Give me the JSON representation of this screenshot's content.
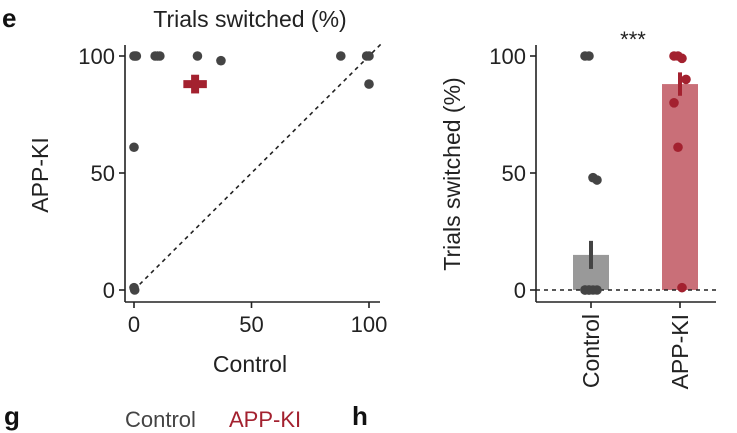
{
  "colors": {
    "control": "#444444",
    "appki": "#a3212f",
    "control_bar": "#999999",
    "appki_bar": "#c96f78",
    "axis": "#222222"
  },
  "panel_labels": {
    "e": "e",
    "g": "g",
    "h": "h"
  },
  "legend": {
    "control": "Control",
    "appki": "APP-KI"
  },
  "chart_data": [
    {
      "type": "scatter",
      "title": "Trials switched (%)",
      "xlabel": "Control",
      "ylabel": "APP-KI",
      "xlim": [
        0,
        100
      ],
      "ylim": [
        0,
        100
      ],
      "xticks": [
        0,
        50,
        100
      ],
      "yticks": [
        0,
        50,
        100
      ],
      "xtick_labels": [
        "0",
        "50",
        "100"
      ],
      "ytick_labels": [
        "0",
        "50",
        "100"
      ],
      "points": [
        {
          "x": 0,
          "y": 100
        },
        {
          "x": 0.5,
          "y": 100
        },
        {
          "x": 1,
          "y": 100
        },
        {
          "x": 9,
          "y": 100
        },
        {
          "x": 10,
          "y": 100
        },
        {
          "x": 11,
          "y": 100
        },
        {
          "x": 27,
          "y": 100
        },
        {
          "x": 37,
          "y": 98
        },
        {
          "x": 88,
          "y": 100
        },
        {
          "x": 99,
          "y": 100
        },
        {
          "x": 100,
          "y": 100
        },
        {
          "x": 100,
          "y": 88
        },
        {
          "x": 0,
          "y": 61
        },
        {
          "x": 0,
          "y": 1
        },
        {
          "x": 0.3,
          "y": 0
        }
      ],
      "mean": {
        "x": 26,
        "y": 88,
        "x_err": 5,
        "y_err": 4
      },
      "identity_line": true
    },
    {
      "type": "bar",
      "ylabel": "Trials switched (%)",
      "categories": [
        "Control",
        "APP-KI"
      ],
      "values": [
        15,
        88
      ],
      "errors": [
        6,
        5
      ],
      "ylim": [
        0,
        100
      ],
      "yticks": [
        0,
        50,
        100
      ],
      "ytick_labels": [
        "0",
        "50",
        "100"
      ],
      "significance": "***",
      "points": [
        [
          100,
          100,
          48,
          47,
          0,
          0,
          0,
          0,
          0,
          0
        ],
        [
          100,
          100,
          99,
          90,
          80,
          61,
          1
        ]
      ],
      "zero_line": true
    }
  ]
}
